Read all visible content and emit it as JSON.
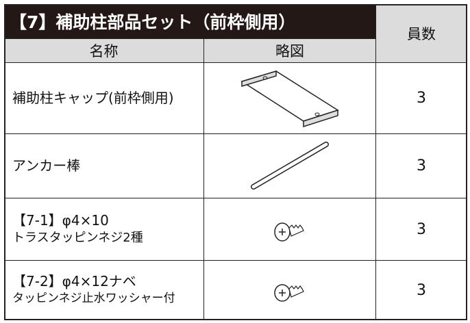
{
  "header": {
    "title": "【7】補助柱部品セット（前枠側用）",
    "columns": [
      "名称",
      "略図",
      "員数"
    ]
  },
  "rows": [
    {
      "name": [
        "補助柱キャップ(前枠側用)"
      ],
      "quantity": 3
    },
    {
      "name": [
        "アンカー棒"
      ],
      "quantity": 3
    },
    {
      "name": [
        "【7-1】φ4×10",
        "トラスタッピンネジ2種"
      ],
      "quantity": 3
    },
    {
      "name": [
        "【7-2】φ4×12ナベ",
        "タッピンネジ止水ワッシャー付"
      ],
      "quantity": 3
    }
  ]
}
